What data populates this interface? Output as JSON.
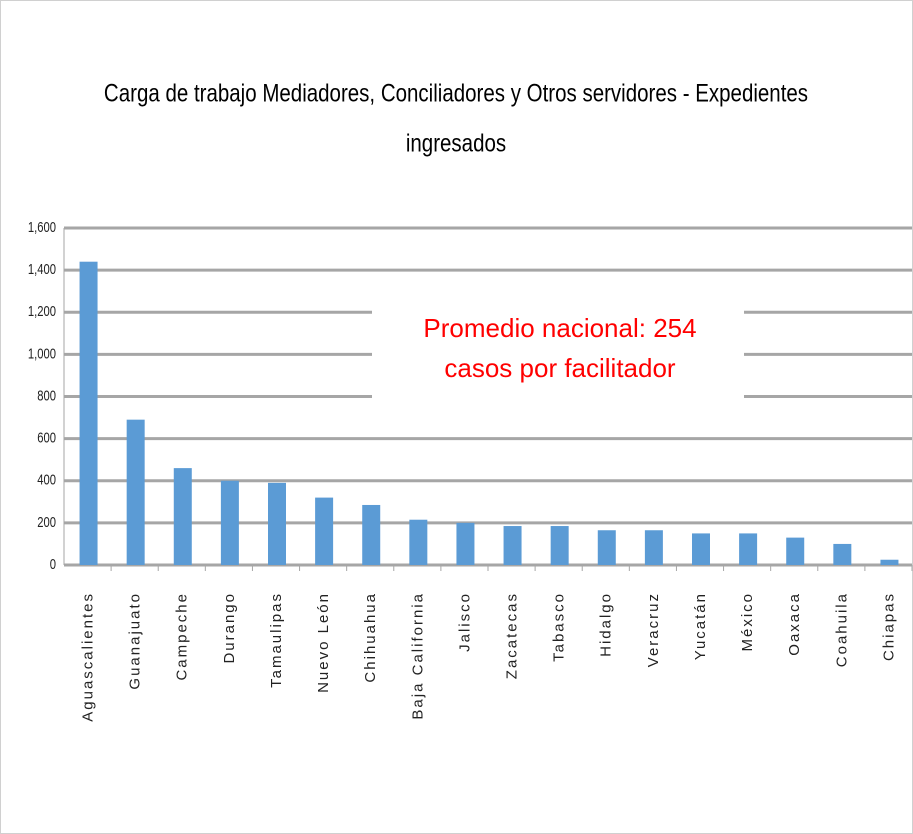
{
  "chart_data": {
    "type": "bar",
    "title": [
      "Carga de trabajo Mediadores, Conciliadores y Otros servidores - Expedientes",
      "ingresados"
    ],
    "annotation": [
      "Promedio nacional: 254",
      "casos por facilitador"
    ],
    "annotation_color": "#ff0000",
    "categories": [
      "Aguascalientes",
      "Guanajuato",
      "Campeche",
      "Durango",
      "Tamaulipas",
      "Nuevo León",
      "Chihuahua",
      "Baja California",
      "Jalisco",
      "Zacatecas",
      "Tabasco",
      "Hidalgo",
      "Veracruz",
      "Yucatán",
      "México",
      "Oaxaca",
      "Coahuila",
      "Chiapas"
    ],
    "values": [
      1440,
      690,
      460,
      400,
      390,
      320,
      285,
      215,
      200,
      185,
      185,
      165,
      165,
      150,
      150,
      130,
      100,
      25
    ],
    "color": "#5b9bd5",
    "ylim": [
      0,
      1600
    ],
    "yticks": [
      0,
      200,
      400,
      600,
      800,
      {
        "value": 1000,
        "label": "1,000"
      },
      {
        "value": 1200,
        "label": "1,200"
      },
      {
        "value": 1400,
        "label": "1,400"
      },
      {
        "value": 1600,
        "label": "1,600"
      }
    ],
    "grid": true
  }
}
